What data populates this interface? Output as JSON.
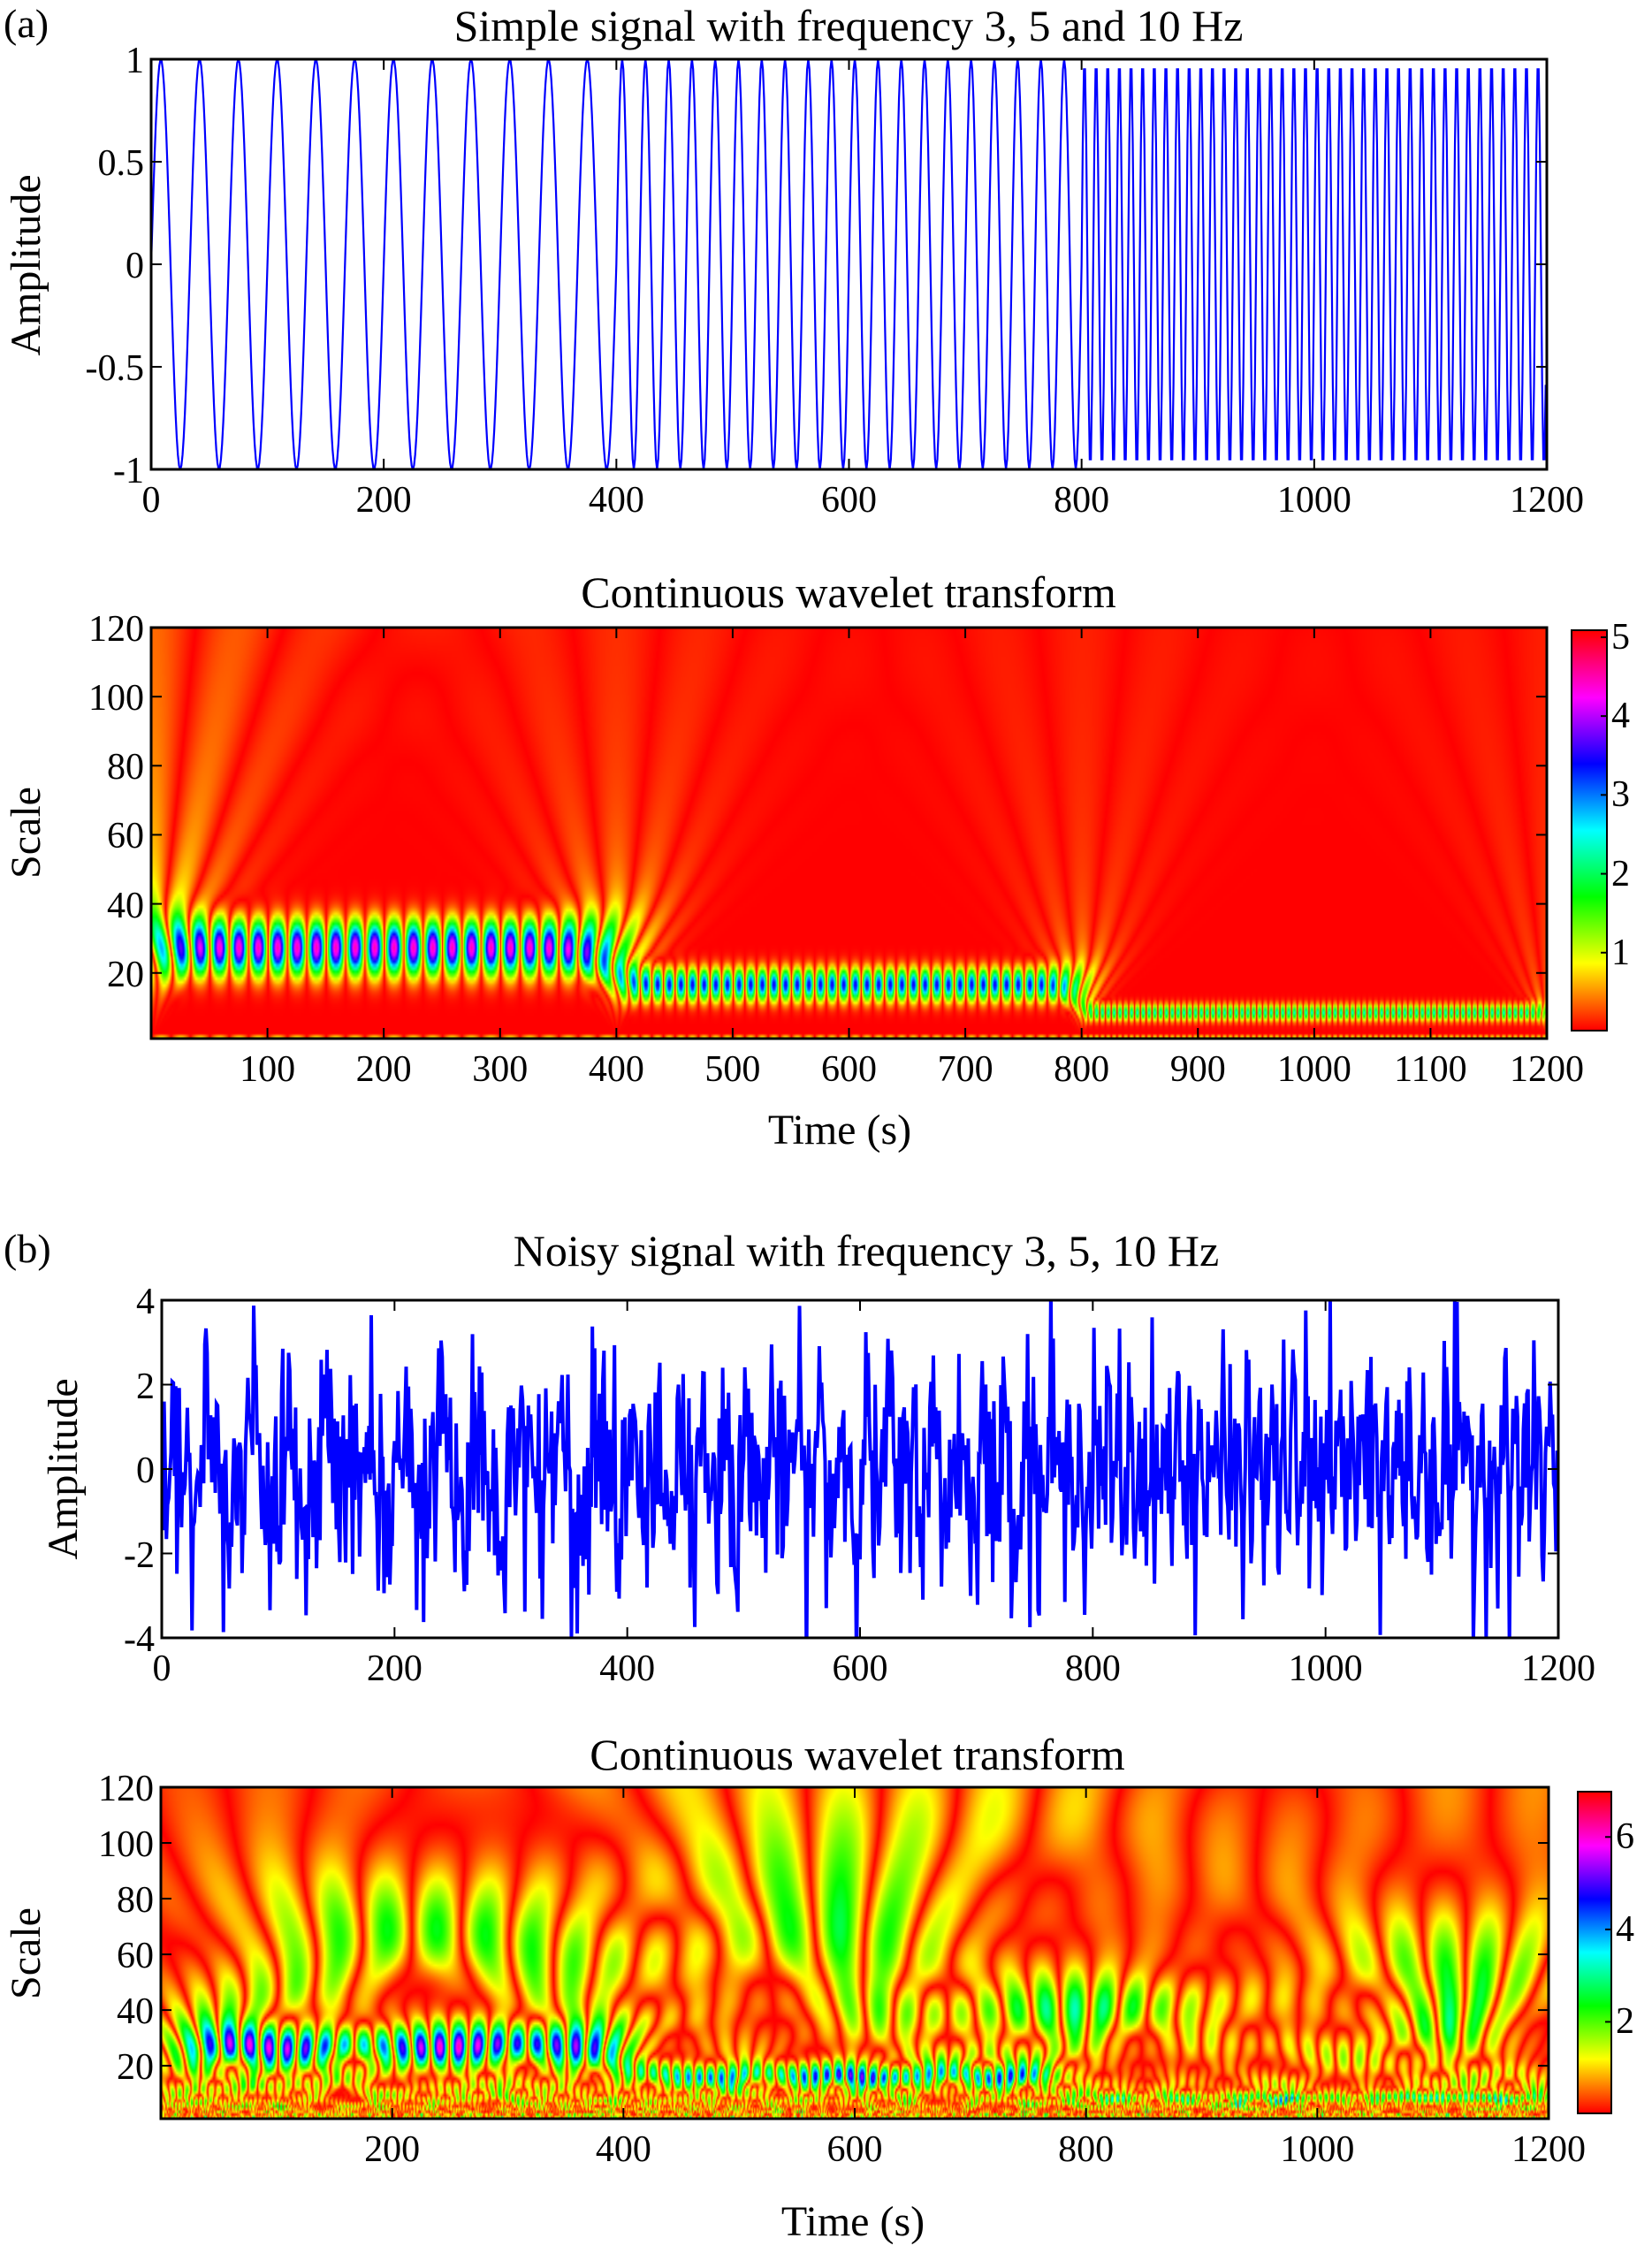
{
  "panel_labels": {
    "a": "(a)",
    "b": "(b)"
  },
  "chart_data": [
    {
      "type": "line",
      "title": "Simple signal with frequency 3, 5 and 10 Hz",
      "xlabel": "",
      "ylabel": "Amplitude",
      "xlim": [
        0,
        1200
      ],
      "ylim": [
        -1,
        1
      ],
      "xticks": [
        0,
        200,
        400,
        600,
        800,
        1000,
        1200
      ],
      "yticks": [
        1,
        0.5,
        0,
        -0.5,
        -1
      ],
      "grid": false,
      "series": [
        {
          "color": "#0000ff",
          "segments": [
            {
              "x_range": [
                0,
                400
              ],
              "freq_hz": 3,
              "amplitude": 1
            },
            {
              "x_range": [
                400,
                800
              ],
              "freq_hz": 5,
              "amplitude": 1
            },
            {
              "x_range": [
                800,
                1200
              ],
              "freq_hz": 10,
              "amplitude": 1
            }
          ]
        }
      ]
    },
    {
      "type": "heatmap",
      "title": "Continuous wavelet transform",
      "xlabel": "Time (s)",
      "ylabel": "Scale",
      "xlim": [
        0,
        1200
      ],
      "ylim": [
        1,
        120
      ],
      "xticks": [
        100,
        200,
        300,
        400,
        500,
        600,
        700,
        800,
        900,
        1000,
        1100,
        1200
      ],
      "yticks": [
        120,
        100,
        80,
        60,
        40,
        20
      ],
      "colormap": "hsv",
      "clim": [
        0,
        5.1
      ],
      "colorbar_ticks": [
        5,
        4,
        3,
        2,
        1
      ]
    },
    {
      "type": "line",
      "title": "Noisy signal with frequency 3, 5, 10 Hz",
      "xlabel": "",
      "ylabel": "Amplitude",
      "xlim": [
        0,
        1200
      ],
      "ylim": [
        -4,
        4
      ],
      "xticks": [
        0,
        200,
        400,
        600,
        800,
        1000,
        1200
      ],
      "yticks": [
        4,
        2,
        0,
        -2,
        -4
      ],
      "grid": false,
      "series": [
        {
          "color": "#0000ff",
          "segments": [
            {
              "x_range": [
                0,
                400
              ],
              "freq_hz": 3,
              "amplitude": 1
            },
            {
              "x_range": [
                400,
                800
              ],
              "freq_hz": 5,
              "amplitude": 1
            },
            {
              "x_range": [
                800,
                1200
              ],
              "freq_hz": 10,
              "amplitude": 1
            }
          ]
        }
      ]
    },
    {
      "type": "heatmap",
      "title": "Continuous wavelet transform",
      "xlabel": "Time (s)",
      "ylabel": "Scale",
      "xlim": [
        0,
        1200
      ],
      "ylim": [
        1,
        120
      ],
      "xticks": [
        200,
        400,
        600,
        800,
        1000,
        1200
      ],
      "yticks": [
        120,
        100,
        80,
        60,
        40,
        20
      ],
      "colormap": "hsv",
      "clim": [
        0,
        7
      ],
      "colorbar_ticks": [
        6,
        4,
        2
      ]
    }
  ]
}
